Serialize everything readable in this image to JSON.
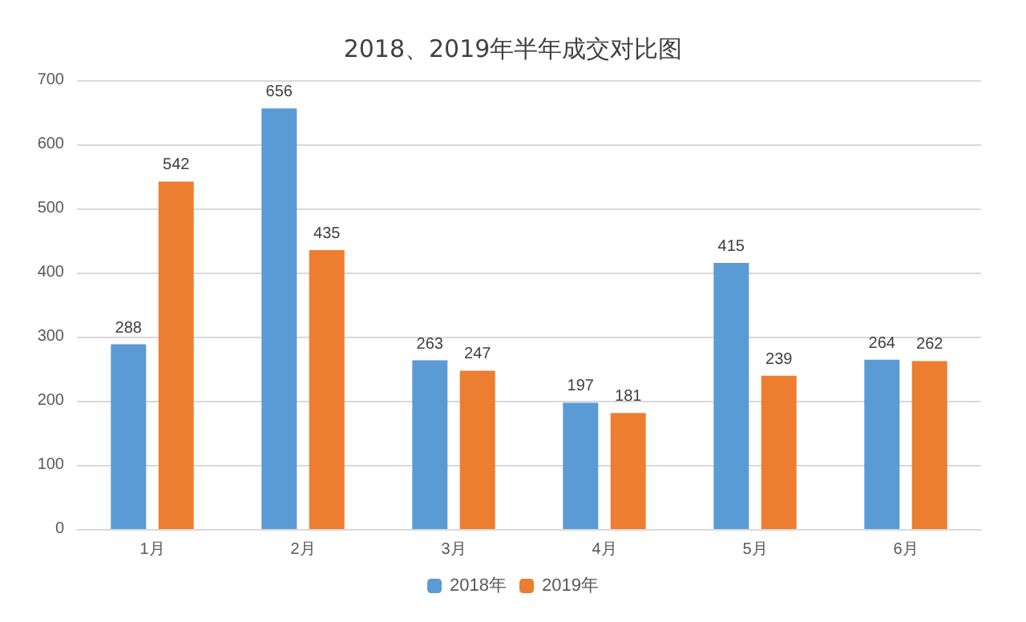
{
  "chart_data": {
    "type": "bar",
    "title": "2018、2019年半年成交对比图",
    "categories": [
      "1月",
      "2月",
      "3月",
      "4月",
      "5月",
      "6月"
    ],
    "series": [
      {
        "name": "2018年",
        "color": "#5b9bd5",
        "values": [
          288,
          656,
          263,
          197,
          415,
          264
        ]
      },
      {
        "name": "2019年",
        "color": "#ed7d31",
        "values": [
          542,
          435,
          247,
          181,
          239,
          262
        ]
      }
    ],
    "ylim": [
      0,
      700
    ],
    "yticks": [
      0,
      100,
      200,
      300,
      400,
      500,
      600,
      700
    ],
    "grid": "y",
    "legend": "bottom",
    "data_labels": true
  }
}
